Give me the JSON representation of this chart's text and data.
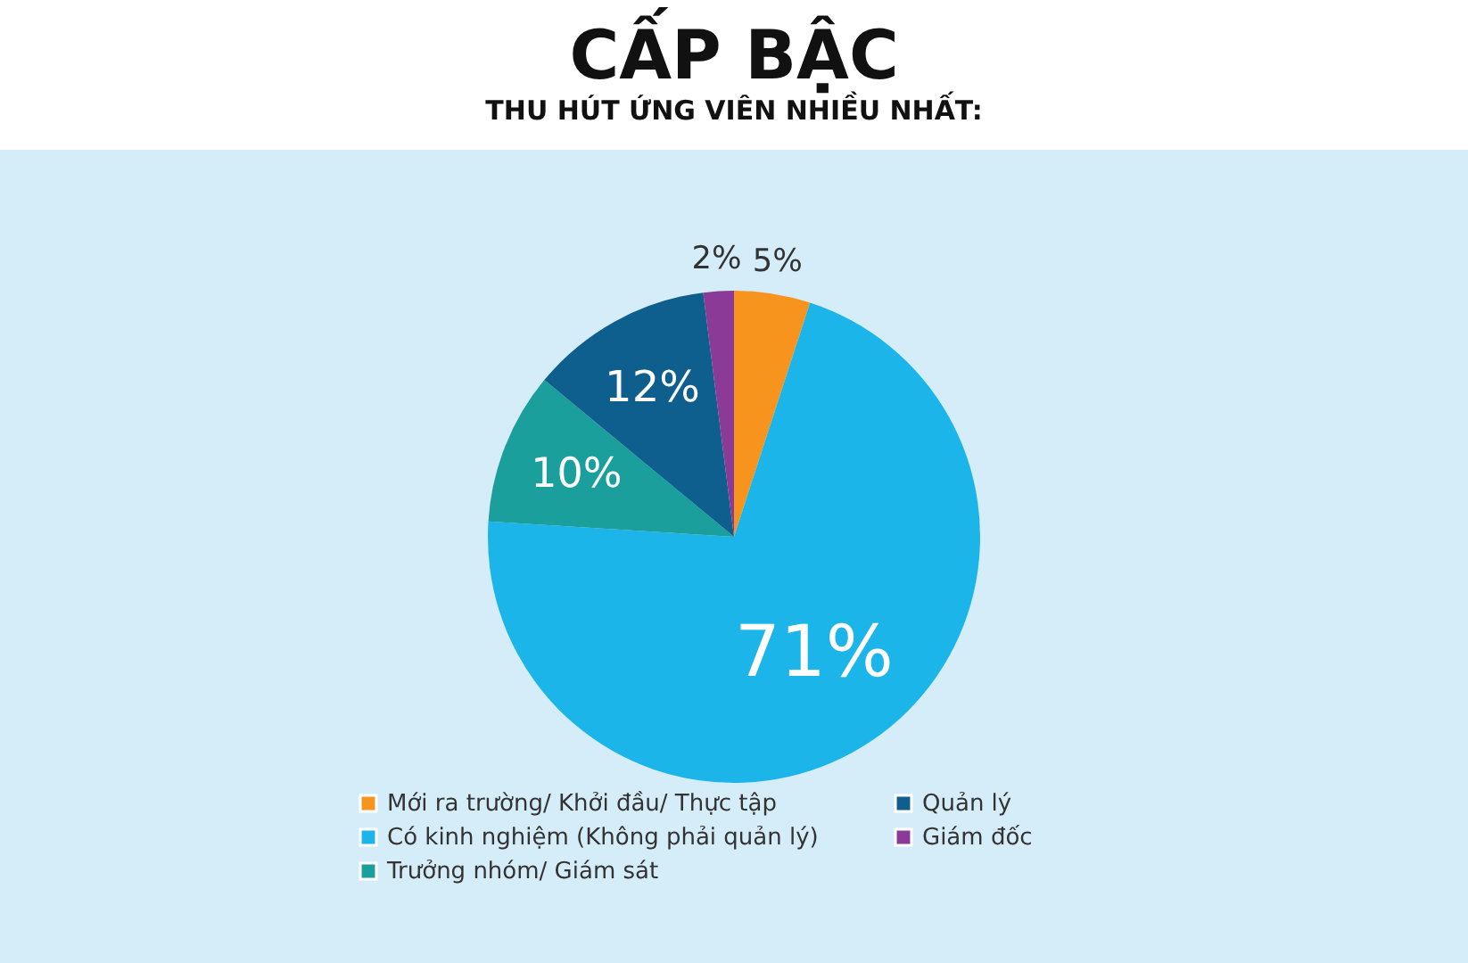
{
  "chart_data": {
    "type": "pie",
    "title": "CẤP BẬC",
    "subtitle": "THU HÚT ỨNG VIÊN NHIỀU NHẤT:",
    "categories": [
      "Mới ra trường/ Khởi đầu/ Thực tập",
      "Có kinh nghiệm (Không phải quản lý)",
      "Trưởng nhóm/ Giám sát",
      "Quản lý",
      "Giám đốc"
    ],
    "values": [
      5,
      71,
      10,
      12,
      2
    ],
    "colors": [
      "#f7941d",
      "#1cb5ea",
      "#1a9f9c",
      "#0e5f8e",
      "#8b3a97"
    ],
    "value_labels": [
      "5%",
      "71%",
      "10%",
      "12%",
      "2%"
    ],
    "legend": "bottom"
  }
}
